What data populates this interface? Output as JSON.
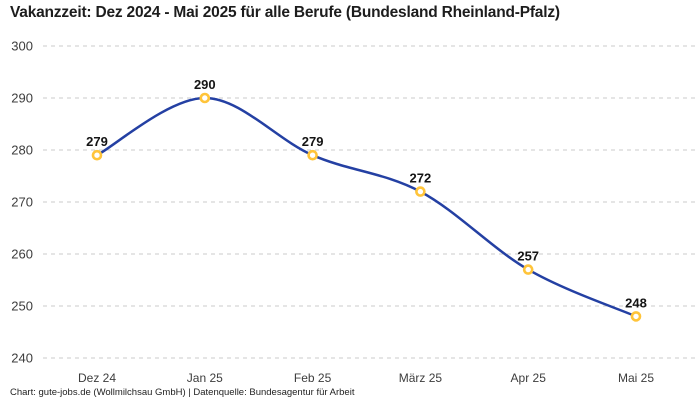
{
  "header": {
    "title": "Vakanzzeit: Dez 2024 - Mai 2025 für alle Berufe (Bundesland Rheinland-Pfalz)"
  },
  "footer": {
    "text": "Chart: gute-jobs.de (Wollmilchsau GmbH) | Datenquelle: Bundesagentur für Arbeit"
  },
  "chart_data": {
    "type": "line",
    "title": "Vakanzzeit: Dez 2024 - Mai 2025 für alle Berufe (Bundesland Rheinland-Pfalz)",
    "categories": [
      "Dez 24",
      "Jan 25",
      "Feb 25",
      "März 25",
      "Apr 25",
      "Mai 25"
    ],
    "values": [
      279,
      290,
      279,
      272,
      257,
      248
    ],
    "xlabel": "",
    "ylabel": "",
    "ylim": [
      240,
      300
    ],
    "yticks": [
      240,
      250,
      260,
      270,
      280,
      290,
      300
    ],
    "grid": "horizontal-dashed",
    "legend": "none",
    "data_labels_shown": true,
    "line_color": "#2440A3",
    "marker_color": "#FFC43A",
    "marker_fill": "#FFFFFF",
    "grid_color": "#CBCBCB",
    "background": "#FFFFFF"
  }
}
